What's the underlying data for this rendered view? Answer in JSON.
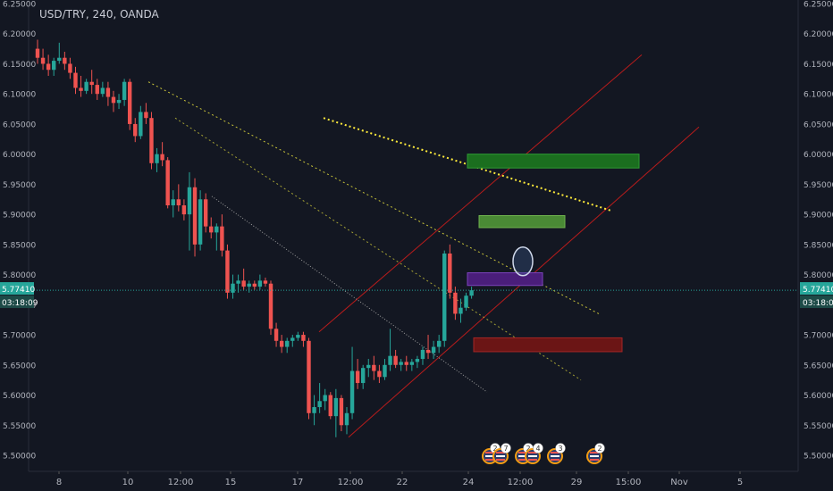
{
  "header": {
    "title": "USD/TRY, 240, OANDA"
  },
  "colors": {
    "background": "#131722",
    "axis_text": "#b2b5be",
    "bull": "#26a69a",
    "bear": "#ef5350",
    "price_line": "#26a69a",
    "channel": "#b71c1c",
    "trend_yellow": "#ffeb3b"
  },
  "chart_data": {
    "type": "candlestick",
    "title": "USD/TRY, 240, OANDA",
    "ylim": [
      5.49,
      6.25
    ],
    "y_ticks": [
      "6.25000",
      "6.20000",
      "6.15000",
      "6.10000",
      "6.05000",
      "6.00000",
      "5.95000",
      "5.90000",
      "5.85000",
      "5.80000",
      "5.75000",
      "5.70000",
      "5.65000",
      "5.60000",
      "5.55000",
      "5.50000"
    ],
    "x_ticks": [
      "8",
      "10",
      "12:00",
      "15",
      "17",
      "12:00",
      "22",
      "24",
      "12:00",
      "29",
      "15:00",
      "Nov",
      "5"
    ],
    "last_price": {
      "value": "5.77410",
      "countdown": "03:18:09"
    },
    "candles": [
      {
        "o": 6.175,
        "h": 6.19,
        "l": 6.15,
        "c": 6.16
      },
      {
        "o": 6.16,
        "h": 6.175,
        "l": 6.14,
        "c": 6.15
      },
      {
        "o": 6.15,
        "h": 6.165,
        "l": 6.13,
        "c": 6.14
      },
      {
        "o": 6.14,
        "h": 6.16,
        "l": 6.13,
        "c": 6.155
      },
      {
        "o": 6.155,
        "h": 6.185,
        "l": 6.15,
        "c": 6.16
      },
      {
        "o": 6.16,
        "h": 6.17,
        "l": 6.14,
        "c": 6.15
      },
      {
        "o": 6.15,
        "h": 6.16,
        "l": 6.125,
        "c": 6.135
      },
      {
        "o": 6.135,
        "h": 6.145,
        "l": 6.1,
        "c": 6.11
      },
      {
        "o": 6.11,
        "h": 6.13,
        "l": 6.095,
        "c": 6.105
      },
      {
        "o": 6.105,
        "h": 6.125,
        "l": 6.1,
        "c": 6.12
      },
      {
        "o": 6.12,
        "h": 6.14,
        "l": 6.1,
        "c": 6.115
      },
      {
        "o": 6.115,
        "h": 6.125,
        "l": 6.09,
        "c": 6.1
      },
      {
        "o": 6.1,
        "h": 6.12,
        "l": 6.095,
        "c": 6.11
      },
      {
        "o": 6.11,
        "h": 6.12,
        "l": 6.08,
        "c": 6.095
      },
      {
        "o": 6.095,
        "h": 6.105,
        "l": 6.07,
        "c": 6.085
      },
      {
        "o": 6.085,
        "h": 6.1,
        "l": 6.075,
        "c": 6.09
      },
      {
        "o": 6.09,
        "h": 6.125,
        "l": 6.08,
        "c": 6.12
      },
      {
        "o": 6.12,
        "h": 6.125,
        "l": 6.04,
        "c": 6.05
      },
      {
        "o": 6.05,
        "h": 6.06,
        "l": 6.02,
        "c": 6.03
      },
      {
        "o": 6.03,
        "h": 6.08,
        "l": 6.025,
        "c": 6.07
      },
      {
        "o": 6.07,
        "h": 6.085,
        "l": 6.05,
        "c": 6.06
      },
      {
        "o": 6.06,
        "h": 6.07,
        "l": 5.975,
        "c": 5.985
      },
      {
        "o": 5.985,
        "h": 6.01,
        "l": 5.97,
        "c": 6.0
      },
      {
        "o": 6.0,
        "h": 6.02,
        "l": 5.98,
        "c": 5.99
      },
      {
        "o": 5.99,
        "h": 5.995,
        "l": 5.91,
        "c": 5.915
      },
      {
        "o": 5.915,
        "h": 5.94,
        "l": 5.895,
        "c": 5.925
      },
      {
        "o": 5.925,
        "h": 5.95,
        "l": 5.905,
        "c": 5.915
      },
      {
        "o": 5.915,
        "h": 5.925,
        "l": 5.89,
        "c": 5.9
      },
      {
        "o": 5.9,
        "h": 5.97,
        "l": 5.84,
        "c": 5.945
      },
      {
        "o": 5.945,
        "h": 5.96,
        "l": 5.83,
        "c": 5.85
      },
      {
        "o": 5.85,
        "h": 5.94,
        "l": 5.84,
        "c": 5.925
      },
      {
        "o": 5.925,
        "h": 5.935,
        "l": 5.87,
        "c": 5.88
      },
      {
        "o": 5.88,
        "h": 5.895,
        "l": 5.86,
        "c": 5.87
      },
      {
        "o": 5.87,
        "h": 5.885,
        "l": 5.84,
        "c": 5.88
      },
      {
        "o": 5.88,
        "h": 5.9,
        "l": 5.83,
        "c": 5.84
      },
      {
        "o": 5.84,
        "h": 5.85,
        "l": 5.76,
        "c": 5.77
      },
      {
        "o": 5.77,
        "h": 5.8,
        "l": 5.76,
        "c": 5.785
      },
      {
        "o": 5.785,
        "h": 5.8,
        "l": 5.77,
        "c": 5.79
      },
      {
        "o": 5.79,
        "h": 5.81,
        "l": 5.775,
        "c": 5.78
      },
      {
        "o": 5.78,
        "h": 5.79,
        "l": 5.77,
        "c": 5.785
      },
      {
        "o": 5.785,
        "h": 5.79,
        "l": 5.775,
        "c": 5.78
      },
      {
        "o": 5.78,
        "h": 5.8,
        "l": 5.775,
        "c": 5.79
      },
      {
        "o": 5.79,
        "h": 5.795,
        "l": 5.78,
        "c": 5.785
      },
      {
        "o": 5.785,
        "h": 5.79,
        "l": 5.7,
        "c": 5.71
      },
      {
        "o": 5.71,
        "h": 5.72,
        "l": 5.68,
        "c": 5.69
      },
      {
        "o": 5.69,
        "h": 5.7,
        "l": 5.67,
        "c": 5.68
      },
      {
        "o": 5.68,
        "h": 5.695,
        "l": 5.67,
        "c": 5.69
      },
      {
        "o": 5.69,
        "h": 5.7,
        "l": 5.68,
        "c": 5.695
      },
      {
        "o": 5.695,
        "h": 5.705,
        "l": 5.69,
        "c": 5.7
      },
      {
        "o": 5.7,
        "h": 5.705,
        "l": 5.68,
        "c": 5.69
      },
      {
        "o": 5.69,
        "h": 5.695,
        "l": 5.56,
        "c": 5.57
      },
      {
        "o": 5.57,
        "h": 5.6,
        "l": 5.55,
        "c": 5.58
      },
      {
        "o": 5.58,
        "h": 5.62,
        "l": 5.57,
        "c": 5.59
      },
      {
        "o": 5.59,
        "h": 5.61,
        "l": 5.575,
        "c": 5.6
      },
      {
        "o": 5.6,
        "h": 5.605,
        "l": 5.56,
        "c": 5.565
      },
      {
        "o": 5.565,
        "h": 5.61,
        "l": 5.53,
        "c": 5.595
      },
      {
        "o": 5.595,
        "h": 5.6,
        "l": 5.54,
        "c": 5.55
      },
      {
        "o": 5.55,
        "h": 5.58,
        "l": 5.535,
        "c": 5.57
      },
      {
        "o": 5.57,
        "h": 5.68,
        "l": 5.56,
        "c": 5.64
      },
      {
        "o": 5.64,
        "h": 5.66,
        "l": 5.61,
        "c": 5.62
      },
      {
        "o": 5.62,
        "h": 5.65,
        "l": 5.61,
        "c": 5.645
      },
      {
        "o": 5.645,
        "h": 5.66,
        "l": 5.63,
        "c": 5.65
      },
      {
        "o": 5.65,
        "h": 5.665,
        "l": 5.625,
        "c": 5.64
      },
      {
        "o": 5.64,
        "h": 5.65,
        "l": 5.62,
        "c": 5.63
      },
      {
        "o": 5.63,
        "h": 5.66,
        "l": 5.625,
        "c": 5.65
      },
      {
        "o": 5.65,
        "h": 5.71,
        "l": 5.64,
        "c": 5.665
      },
      {
        "o": 5.665,
        "h": 5.675,
        "l": 5.645,
        "c": 5.65
      },
      {
        "o": 5.65,
        "h": 5.66,
        "l": 5.64,
        "c": 5.655
      },
      {
        "o": 5.655,
        "h": 5.665,
        "l": 5.64,
        "c": 5.65
      },
      {
        "o": 5.65,
        "h": 5.66,
        "l": 5.64,
        "c": 5.655
      },
      {
        "o": 5.655,
        "h": 5.665,
        "l": 5.645,
        "c": 5.66
      },
      {
        "o": 5.66,
        "h": 5.68,
        "l": 5.65,
        "c": 5.675
      },
      {
        "o": 5.675,
        "h": 5.7,
        "l": 5.66,
        "c": 5.67
      },
      {
        "o": 5.67,
        "h": 5.69,
        "l": 5.66,
        "c": 5.68
      },
      {
        "o": 5.68,
        "h": 5.7,
        "l": 5.67,
        "c": 5.69
      },
      {
        "o": 5.69,
        "h": 5.84,
        "l": 5.68,
        "c": 5.835
      },
      {
        "o": 5.835,
        "h": 5.85,
        "l": 5.76,
        "c": 5.77
      },
      {
        "o": 5.77,
        "h": 5.78,
        "l": 5.725,
        "c": 5.735
      },
      {
        "o": 5.735,
        "h": 5.76,
        "l": 5.72,
        "c": 5.745
      },
      {
        "o": 5.745,
        "h": 5.77,
        "l": 5.74,
        "c": 5.765
      },
      {
        "o": 5.765,
        "h": 5.78,
        "l": 5.76,
        "c": 5.774
      }
    ],
    "drawings": {
      "channel_lower": [
        [
          1,
          5.53
        ],
        [
          3,
          5.94
        ]
      ],
      "channel_upper": [
        [
          1,
          5.6
        ],
        [
          2,
          6.17
        ]
      ],
      "zones": [
        "green",
        "green",
        "purple",
        "red"
      ],
      "events": [
        "2",
        "7",
        "2",
        "4",
        "3",
        "2",
        "3"
      ]
    }
  }
}
